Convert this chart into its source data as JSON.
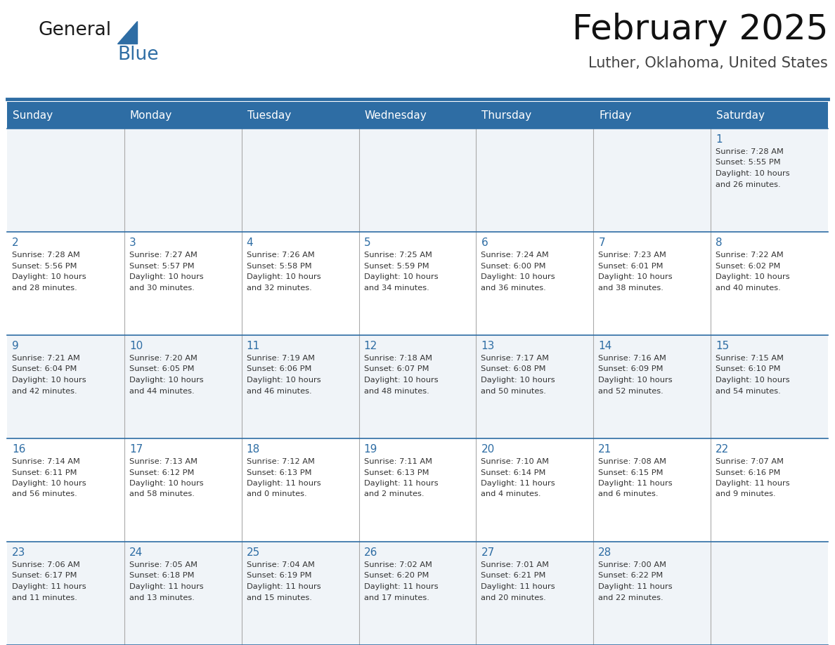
{
  "title": "February 2025",
  "subtitle": "Luther, Oklahoma, United States",
  "header_bg": "#2E6DA4",
  "header_text": "#FFFFFF",
  "day_names": [
    "Sunday",
    "Monday",
    "Tuesday",
    "Wednesday",
    "Thursday",
    "Friday",
    "Saturday"
  ],
  "row_bg_light": "#F0F4F8",
  "row_bg_white": "#FFFFFF",
  "cell_border_color": "#2E6DA4",
  "vert_border_color": "#AAAAAA",
  "date_color": "#2E6DA4",
  "info_color": "#333333",
  "calendar": [
    [
      null,
      null,
      null,
      null,
      null,
      null,
      {
        "day": 1,
        "sunrise": "7:28 AM",
        "sunset": "5:55 PM",
        "daylight_line1": "Daylight: 10 hours",
        "daylight_line2": "and 26 minutes."
      }
    ],
    [
      {
        "day": 2,
        "sunrise": "7:28 AM",
        "sunset": "5:56 PM",
        "daylight_line1": "Daylight: 10 hours",
        "daylight_line2": "and 28 minutes."
      },
      {
        "day": 3,
        "sunrise": "7:27 AM",
        "sunset": "5:57 PM",
        "daylight_line1": "Daylight: 10 hours",
        "daylight_line2": "and 30 minutes."
      },
      {
        "day": 4,
        "sunrise": "7:26 AM",
        "sunset": "5:58 PM",
        "daylight_line1": "Daylight: 10 hours",
        "daylight_line2": "and 32 minutes."
      },
      {
        "day": 5,
        "sunrise": "7:25 AM",
        "sunset": "5:59 PM",
        "daylight_line1": "Daylight: 10 hours",
        "daylight_line2": "and 34 minutes."
      },
      {
        "day": 6,
        "sunrise": "7:24 AM",
        "sunset": "6:00 PM",
        "daylight_line1": "Daylight: 10 hours",
        "daylight_line2": "and 36 minutes."
      },
      {
        "day": 7,
        "sunrise": "7:23 AM",
        "sunset": "6:01 PM",
        "daylight_line1": "Daylight: 10 hours",
        "daylight_line2": "and 38 minutes."
      },
      {
        "day": 8,
        "sunrise": "7:22 AM",
        "sunset": "6:02 PM",
        "daylight_line1": "Daylight: 10 hours",
        "daylight_line2": "and 40 minutes."
      }
    ],
    [
      {
        "day": 9,
        "sunrise": "7:21 AM",
        "sunset": "6:04 PM",
        "daylight_line1": "Daylight: 10 hours",
        "daylight_line2": "and 42 minutes."
      },
      {
        "day": 10,
        "sunrise": "7:20 AM",
        "sunset": "6:05 PM",
        "daylight_line1": "Daylight: 10 hours",
        "daylight_line2": "and 44 minutes."
      },
      {
        "day": 11,
        "sunrise": "7:19 AM",
        "sunset": "6:06 PM",
        "daylight_line1": "Daylight: 10 hours",
        "daylight_line2": "and 46 minutes."
      },
      {
        "day": 12,
        "sunrise": "7:18 AM",
        "sunset": "6:07 PM",
        "daylight_line1": "Daylight: 10 hours",
        "daylight_line2": "and 48 minutes."
      },
      {
        "day": 13,
        "sunrise": "7:17 AM",
        "sunset": "6:08 PM",
        "daylight_line1": "Daylight: 10 hours",
        "daylight_line2": "and 50 minutes."
      },
      {
        "day": 14,
        "sunrise": "7:16 AM",
        "sunset": "6:09 PM",
        "daylight_line1": "Daylight: 10 hours",
        "daylight_line2": "and 52 minutes."
      },
      {
        "day": 15,
        "sunrise": "7:15 AM",
        "sunset": "6:10 PM",
        "daylight_line1": "Daylight: 10 hours",
        "daylight_line2": "and 54 minutes."
      }
    ],
    [
      {
        "day": 16,
        "sunrise": "7:14 AM",
        "sunset": "6:11 PM",
        "daylight_line1": "Daylight: 10 hours",
        "daylight_line2": "and 56 minutes."
      },
      {
        "day": 17,
        "sunrise": "7:13 AM",
        "sunset": "6:12 PM",
        "daylight_line1": "Daylight: 10 hours",
        "daylight_line2": "and 58 minutes."
      },
      {
        "day": 18,
        "sunrise": "7:12 AM",
        "sunset": "6:13 PM",
        "daylight_line1": "Daylight: 11 hours",
        "daylight_line2": "and 0 minutes."
      },
      {
        "day": 19,
        "sunrise": "7:11 AM",
        "sunset": "6:13 PM",
        "daylight_line1": "Daylight: 11 hours",
        "daylight_line2": "and 2 minutes."
      },
      {
        "day": 20,
        "sunrise": "7:10 AM",
        "sunset": "6:14 PM",
        "daylight_line1": "Daylight: 11 hours",
        "daylight_line2": "and 4 minutes."
      },
      {
        "day": 21,
        "sunrise": "7:08 AM",
        "sunset": "6:15 PM",
        "daylight_line1": "Daylight: 11 hours",
        "daylight_line2": "and 6 minutes."
      },
      {
        "day": 22,
        "sunrise": "7:07 AM",
        "sunset": "6:16 PM",
        "daylight_line1": "Daylight: 11 hours",
        "daylight_line2": "and 9 minutes."
      }
    ],
    [
      {
        "day": 23,
        "sunrise": "7:06 AM",
        "sunset": "6:17 PM",
        "daylight_line1": "Daylight: 11 hours",
        "daylight_line2": "and 11 minutes."
      },
      {
        "day": 24,
        "sunrise": "7:05 AM",
        "sunset": "6:18 PM",
        "daylight_line1": "Daylight: 11 hours",
        "daylight_line2": "and 13 minutes."
      },
      {
        "day": 25,
        "sunrise": "7:04 AM",
        "sunset": "6:19 PM",
        "daylight_line1": "Daylight: 11 hours",
        "daylight_line2": "and 15 minutes."
      },
      {
        "day": 26,
        "sunrise": "7:02 AM",
        "sunset": "6:20 PM",
        "daylight_line1": "Daylight: 11 hours",
        "daylight_line2": "and 17 minutes."
      },
      {
        "day": 27,
        "sunrise": "7:01 AM",
        "sunset": "6:21 PM",
        "daylight_line1": "Daylight: 11 hours",
        "daylight_line2": "and 20 minutes."
      },
      {
        "day": 28,
        "sunrise": "7:00 AM",
        "sunset": "6:22 PM",
        "daylight_line1": "Daylight: 11 hours",
        "daylight_line2": "and 22 minutes."
      },
      null
    ]
  ],
  "fig_width": 11.88,
  "fig_height": 9.18,
  "dpi": 100
}
